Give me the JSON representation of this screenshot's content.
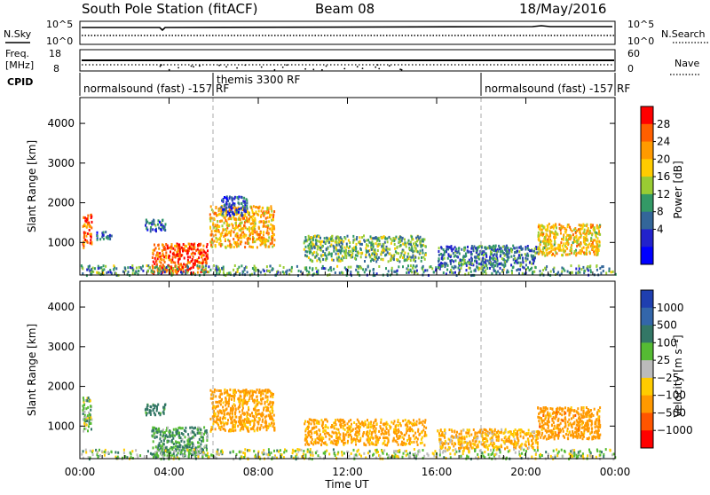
{
  "header": {
    "station": "South Pole Station (fitACF)",
    "beam": "Beam 08",
    "date": "18/May/2016"
  },
  "aux_panels": {
    "nsky_label": "N.Sky",
    "nsky_ticks": [
      "10^5",
      "10^0"
    ],
    "nsearch_label": "N.Search",
    "nsearch_ticks": [
      "10^5",
      "10^0"
    ],
    "freq_label_line1": "Freq.",
    "freq_label_line2": "[MHz]",
    "freq_ticks": [
      "18",
      "8"
    ],
    "nave_label": "Nave",
    "nave_ticks": [
      "60",
      "0"
    ],
    "cpid_label": "CPID",
    "modes": [
      {
        "label": "normalsound (fast) -157 RF",
        "start": 0,
        "end": 6
      },
      {
        "label": "themis 3300 RF",
        "start": 6,
        "end": 18
      },
      {
        "label": "normalsound (fast) -157 RF",
        "start": 18,
        "end": 24
      }
    ]
  },
  "power_panel": {
    "ylabel": "Slant Range [km]",
    "colorbar_label": "Power [dB]",
    "colorbar_ticks": [
      "28",
      "24",
      "20",
      "16",
      "12",
      "8",
      "4"
    ],
    "colorbar_colors": [
      "#ff0000",
      "#ff5f00",
      "#ff9a00",
      "#ffcc00",
      "#99cc33",
      "#339966",
      "#336699",
      "#2222cc",
      "#0000ff"
    ]
  },
  "velocity_panel": {
    "ylabel": "Slant Range [km]",
    "colorbar_label": "Velocity [m s⁻¹]",
    "colorbar_ticks": [
      "1000",
      "500",
      "100",
      "25",
      "−25",
      "−100",
      "−500",
      "−1000"
    ],
    "colorbar_colors": [
      "#1f3fb0",
      "#3366aa",
      "#337766",
      "#55bb33",
      "#bbbbbb",
      "#ffcc00",
      "#ff9900",
      "#ff5500",
      "#ff0000"
    ]
  },
  "xlabel": "Time UT",
  "chart_data": [
    {
      "type": "heatmap",
      "name": "power",
      "title": "",
      "xlabel": "Time UT",
      "ylabel": "Slant Range [km]",
      "x_ticks": [
        "00:00",
        "04:00",
        "08:00",
        "12:00",
        "16:00",
        "20:00",
        "00:00"
      ],
      "x_range_hours": [
        0,
        24
      ],
      "y_ticks": [
        1000,
        2000,
        3000,
        4000
      ],
      "ylim": [
        180,
        4650
      ],
      "colorbar": {
        "label": "Power [dB]",
        "range": [
          0,
          32
        ]
      },
      "regions": [
        {
          "t0": 0.1,
          "t1": 0.5,
          "r0": 900,
          "r1": 1750,
          "value": 26
        },
        {
          "t0": 0.7,
          "t1": 1.4,
          "r0": 1100,
          "r1": 1300,
          "value": 8
        },
        {
          "t0": 2.9,
          "t1": 3.8,
          "r0": 1300,
          "r1": 1600,
          "value": 9
        },
        {
          "t0": 3.2,
          "t1": 5.7,
          "r0": 250,
          "r1": 1000,
          "value": 27
        },
        {
          "t0": 5.8,
          "t1": 8.7,
          "r0": 900,
          "r1": 1950,
          "value": 22
        },
        {
          "t0": 6.3,
          "t1": 7.5,
          "r0": 1700,
          "r1": 2200,
          "value": 7
        },
        {
          "t0": 10.0,
          "t1": 15.5,
          "r0": 550,
          "r1": 1200,
          "value": 14
        },
        {
          "t0": 16.0,
          "t1": 20.5,
          "r0": 450,
          "r1": 950,
          "value": 10
        },
        {
          "t0": 20.5,
          "t1": 23.3,
          "r0": 700,
          "r1": 1500,
          "value": 20
        },
        {
          "t0": 0.0,
          "t1": 24.0,
          "r0": 200,
          "r1": 450,
          "value": 12
        }
      ]
    },
    {
      "type": "heatmap",
      "name": "velocity",
      "title": "",
      "xlabel": "Time UT",
      "ylabel": "Slant Range [km]",
      "x_ticks": [
        "00:00",
        "04:00",
        "08:00",
        "12:00",
        "16:00",
        "20:00",
        "00:00"
      ],
      "x_range_hours": [
        0,
        24
      ],
      "y_ticks": [
        1000,
        2000,
        3000,
        4000
      ],
      "ylim": [
        180,
        4650
      ],
      "colorbar": {
        "label": "Velocity [m s⁻¹]",
        "range": [
          -1000,
          1000
        ]
      },
      "regions": [
        {
          "t0": 0.1,
          "t1": 0.5,
          "r0": 900,
          "r1": 1750,
          "value": 50
        },
        {
          "t0": 2.9,
          "t1": 3.8,
          "r0": 1300,
          "r1": 1600,
          "value": 300
        },
        {
          "t0": 3.2,
          "t1": 5.7,
          "r0": 250,
          "r1": 1000,
          "value": 100
        },
        {
          "t0": 5.8,
          "t1": 8.7,
          "r0": 900,
          "r1": 1950,
          "value": -200
        },
        {
          "t0": 10.0,
          "t1": 15.5,
          "r0": 550,
          "r1": 1200,
          "value": -150
        },
        {
          "t0": 16.0,
          "t1": 20.5,
          "r0": 450,
          "r1": 950,
          "value": -100
        },
        {
          "t0": 20.5,
          "t1": 23.3,
          "r0": 700,
          "r1": 1500,
          "value": -300
        },
        {
          "t0": 0.0,
          "t1": 24.0,
          "r0": 200,
          "r1": 450,
          "value": 20
        }
      ]
    }
  ]
}
